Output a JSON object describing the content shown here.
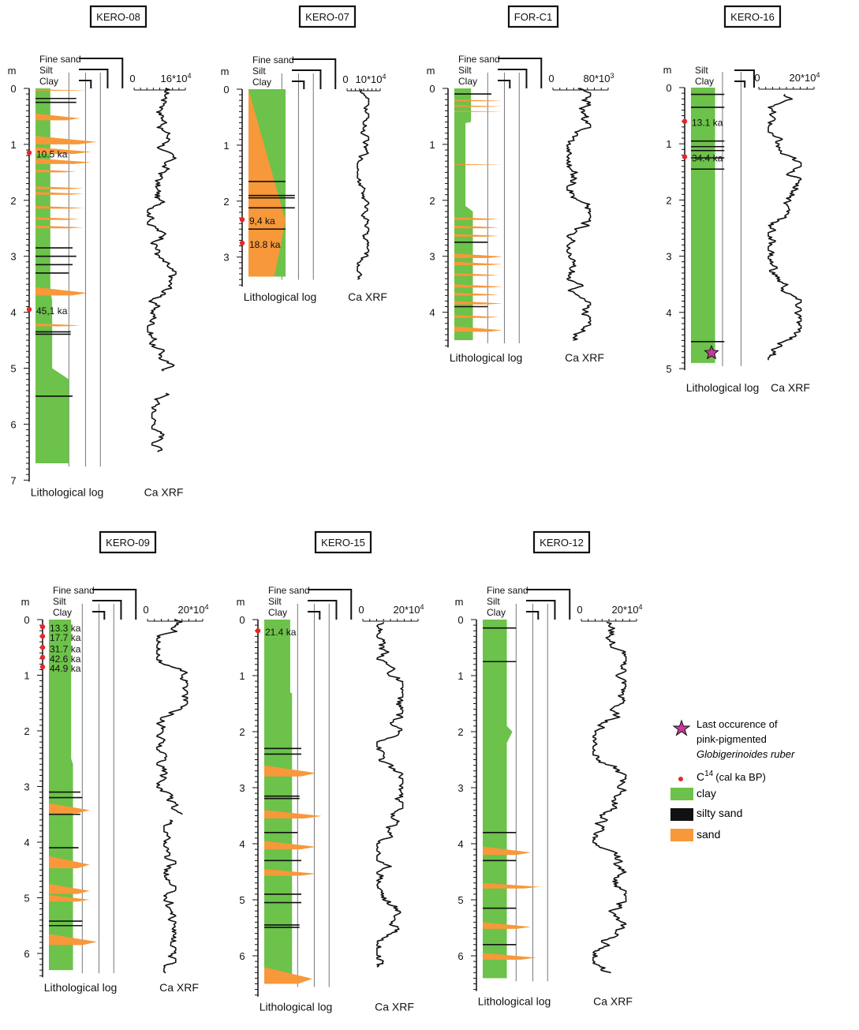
{
  "palette": {
    "clay": "#6cc24a",
    "sand": "#f7983a",
    "silty_sand": "#111111",
    "date_dot": "#e8262b",
    "star": "#c63b9a",
    "line": "#111111"
  },
  "labels": {
    "m": "m",
    "fine_sand": "Fine sand",
    "silt": "Silt",
    "clay": "Clay",
    "litho": "Lithological log",
    "ca": "Ca XRF"
  },
  "legend": {
    "star_line1": "Last occurence of",
    "star_line2": "pink-pigmented",
    "star_line3": "Globigerinoides ruber",
    "c14_main": "C",
    "c14_sup": "14",
    "c14_rest": "(cal ka BP)",
    "clay": "clay",
    "silty_sand": "silty sand",
    "sand": "sand"
  },
  "cores": [
    {
      "id": "KERO-08",
      "depth_max": 7,
      "core_length": 6.7,
      "ticks": [
        "0",
        "1",
        "2",
        "3",
        "4",
        "5",
        "6",
        "7"
      ],
      "xrf_scale": [
        "0",
        "16*10",
        "4"
      ],
      "clay_profile": [
        [
          0,
          0.4
        ],
        [
          3.6,
          0.4
        ],
        [
          3.8,
          0.45
        ],
        [
          5.0,
          0.45
        ],
        [
          5.2,
          0.9
        ],
        [
          6.7,
          0.9
        ]
      ],
      "sand": [
        [
          0.02,
          0.02,
          1.4
        ],
        [
          0.45,
          0.12,
          1.2
        ],
        [
          0.85,
          0.15,
          1.65
        ],
        [
          1.05,
          0.12,
          1.5
        ],
        [
          1.25,
          0.1,
          1.5
        ],
        [
          1.45,
          0.05,
          1.1
        ],
        [
          1.75,
          0.05,
          1.3
        ],
        [
          1.85,
          0.05,
          1.3
        ],
        [
          2.1,
          0.05,
          1.3
        ],
        [
          2.3,
          0.05,
          1.2
        ],
        [
          2.45,
          0.05,
          1.3
        ],
        [
          3.55,
          0.15,
          1.4
        ],
        [
          4.2,
          0.05,
          1.2
        ]
      ],
      "silty": [
        [
          0.18,
          0.03,
          1.1
        ],
        [
          0.25,
          0.02,
          1.1
        ],
        [
          2.85,
          0.02,
          1.0
        ],
        [
          3.0,
          0.02,
          1.1
        ],
        [
          3.15,
          0.02,
          1.0
        ],
        [
          3.3,
          0.02,
          0.9
        ],
        [
          4.35,
          0.1,
          0.95
        ],
        [
          5.5,
          0.02,
          1.0
        ]
      ],
      "dates": [
        {
          "d": 1.15,
          "label": "10.5 ka"
        },
        {
          "d": 3.95,
          "label": "45,1 ka"
        }
      ],
      "ca": [
        {
          "from": 0,
          "to": 5.05,
          "lo": 0.2,
          "hi": 0.85
        },
        {
          "from": 5.45,
          "to": 6.5,
          "lo": 0.3,
          "hi": 0.95
        }
      ],
      "star": null
    },
    {
      "id": "KERO-07",
      "depth_max": 3.5,
      "core_length": 3.35,
      "ticks": [
        "0",
        "1",
        "2",
        "3"
      ],
      "xrf_scale": [
        "0",
        "10*10",
        "4"
      ],
      "clay_profile": [
        [
          0,
          1.0
        ],
        [
          3.35,
          1.0
        ]
      ],
      "sand": [
        [
          0,
          3.35,
          1.0
        ]
      ],
      "silty": [
        [
          1.9,
          0.1,
          1.25
        ],
        [
          2.12,
          0.03,
          1.25
        ],
        [
          1.65,
          0.02,
          1.0
        ],
        [
          2.5,
          0.02,
          1.0
        ]
      ],
      "dates": [
        {
          "d": 2.33,
          "label": "9,4 ka"
        },
        {
          "d": 2.75,
          "label": "18.8 ka"
        }
      ],
      "ca": [
        {
          "from": 0,
          "to": 3.4,
          "lo": 0.2,
          "hi": 0.6
        }
      ],
      "star": null
    },
    {
      "id": "FOR-C1",
      "depth_max": 4.6,
      "core_length": 4.5,
      "ticks": [
        "0",
        "1",
        "2",
        "3",
        "4"
      ],
      "xrf_scale": [
        "0",
        "80*10",
        "3"
      ],
      "clay_profile": [
        [
          0,
          0.45
        ],
        [
          0.6,
          0.45
        ],
        [
          0.62,
          0.3
        ],
        [
          2.1,
          0.3
        ],
        [
          2.2,
          0.5
        ],
        [
          4.5,
          0.5
        ]
      ],
      "sand": [
        [
          0.2,
          0.03,
          1.3
        ],
        [
          0.3,
          0.03,
          1.3
        ],
        [
          0.4,
          0.02,
          1.3
        ],
        [
          1.35,
          0.02,
          1.3
        ],
        [
          2.3,
          0.05,
          1.2
        ],
        [
          2.45,
          0.05,
          1.2
        ],
        [
          2.6,
          0.05,
          1.2
        ],
        [
          2.95,
          0.08,
          1.3
        ],
        [
          3.1,
          0.06,
          1.3
        ],
        [
          3.3,
          0.05,
          1.2
        ],
        [
          3.5,
          0.06,
          1.3
        ],
        [
          3.65,
          0.05,
          1.2
        ],
        [
          3.8,
          0.06,
          1.3
        ],
        [
          4.05,
          0.05,
          1.2
        ],
        [
          4.25,
          0.1,
          1.3
        ]
      ],
      "silty": [
        [
          0.1,
          0.02,
          1.0
        ],
        [
          2.75,
          0.02,
          0.9
        ],
        [
          3.9,
          0.02,
          0.9
        ]
      ],
      "dates": [],
      "ca": [
        {
          "from": 0,
          "to": 4.5,
          "lo": 0.2,
          "hi": 0.7
        }
      ],
      "star": null
    },
    {
      "id": "KERO-16",
      "depth_max": 5,
      "core_length": 4.9,
      "ticks": [
        "0",
        "1",
        "2",
        "3",
        "4",
        "5"
      ],
      "xrf_scale": [
        "0",
        "20*10",
        "4"
      ],
      "clay_profile": [
        [
          0,
          0.65
        ],
        [
          4.9,
          0.65
        ]
      ],
      "sand": [],
      "silty": [
        [
          0.12,
          0.03,
          0.9
        ],
        [
          0.35,
          0.02,
          0.9
        ],
        [
          0.95,
          0.03,
          0.9
        ],
        [
          1.05,
          0.02,
          0.9
        ],
        [
          1.12,
          0.03,
          0.9
        ],
        [
          1.25,
          0.02,
          0.9
        ],
        [
          1.45,
          0.04,
          0.9
        ],
        [
          4.52,
          0.03,
          0.9
        ]
      ],
      "dates": [
        {
          "d": 0.6,
          "label": "13.1 ka"
        },
        {
          "d": 1.23,
          "label": "34.4 ka"
        }
      ],
      "ca": [
        {
          "from": 0.12,
          "to": 4.85,
          "lo": 0.1,
          "hi": 0.8
        }
      ],
      "star": 4.72
    },
    {
      "id": "KERO-09",
      "depth_max": 6.4,
      "core_length": 6.3,
      "ticks": [
        "0",
        "1",
        "2",
        "3",
        "4",
        "5",
        "6"
      ],
      "xrf_scale": [
        "0",
        "20*10",
        "4"
      ],
      "clay_profile": [
        [
          0,
          0.6
        ],
        [
          2.5,
          0.6
        ],
        [
          2.6,
          0.65
        ],
        [
          6.3,
          0.65
        ]
      ],
      "sand": [
        [
          3.3,
          0.18,
          1.1
        ],
        [
          4.25,
          0.22,
          1.1
        ],
        [
          4.75,
          0.18,
          1.1
        ],
        [
          4.95,
          0.12,
          1.1
        ],
        [
          5.65,
          0.2,
          1.3
        ]
      ],
      "silty": [
        [
          3.1,
          0.03,
          0.85
        ],
        [
          3.2,
          0.03,
          0.9
        ],
        [
          3.5,
          0.02,
          0.85
        ],
        [
          4.1,
          0.03,
          0.8
        ],
        [
          5.42,
          0.03,
          0.9
        ],
        [
          5.5,
          0.02,
          0.9
        ]
      ],
      "dates": [
        {
          "d": 0.13,
          "label": "13.3 ka"
        },
        {
          "d": 0.3,
          "label": "17.7 ka"
        },
        {
          "d": 0.5,
          "label": "31.7 ka"
        },
        {
          "d": 0.68,
          "label": "42.6 ka"
        },
        {
          "d": 0.85,
          "label": "44.9 ka"
        }
      ],
      "ca": [
        {
          "from": 0,
          "to": 3.5,
          "lo": 0.1,
          "hi": 0.75
        },
        {
          "from": 3.6,
          "to": 6.35,
          "lo": 0.25,
          "hi": 0.5
        }
      ],
      "star": null
    },
    {
      "id": "KERO-15",
      "depth_max": 6.7,
      "core_length": 6.5,
      "ticks": [
        "0",
        "1",
        "2",
        "3",
        "4",
        "5",
        "6"
      ],
      "xrf_scale": [
        "0",
        "20*10",
        "4"
      ],
      "clay_profile": [
        [
          0,
          0.7
        ],
        [
          1.3,
          0.7
        ],
        [
          1.32,
          0.75
        ],
        [
          6.5,
          0.75
        ]
      ],
      "sand": [
        [
          2.6,
          0.2,
          1.4
        ],
        [
          3.4,
          0.15,
          1.55
        ],
        [
          3.95,
          0.15,
          1.4
        ],
        [
          4.45,
          0.12,
          1.4
        ],
        [
          6.2,
          0.3,
          1.3
        ]
      ],
      "silty": [
        [
          2.3,
          0.04,
          1.0
        ],
        [
          2.4,
          0.03,
          1.0
        ],
        [
          3.15,
          0.08,
          0.95
        ],
        [
          3.8,
          0.03,
          0.9
        ],
        [
          4.3,
          0.03,
          1.0
        ],
        [
          4.9,
          0.06,
          1.0
        ],
        [
          5.05,
          0.05,
          1.0
        ],
        [
          5.45,
          0.1,
          0.95
        ]
      ],
      "dates": [
        {
          "d": 0.2,
          "label": "21.4 ka"
        }
      ],
      "ca": [
        {
          "from": 0.05,
          "to": 6.2,
          "lo": 0.2,
          "hi": 0.75
        }
      ],
      "star": null
    },
    {
      "id": "KERO-12",
      "depth_max": 6.6,
      "core_length": 6.4,
      "ticks": [
        "0",
        "1",
        "2",
        "3",
        "4",
        "5",
        "6"
      ],
      "xrf_scale": [
        "0",
        "20*10",
        "4"
      ],
      "clay_profile": [
        [
          0,
          0.65
        ],
        [
          1.9,
          0.65
        ],
        [
          2.0,
          0.8
        ],
        [
          2.2,
          0.65
        ],
        [
          6.4,
          0.65
        ]
      ],
      "sand": [
        [
          4.05,
          0.15,
          1.3
        ],
        [
          4.7,
          0.1,
          1.55
        ],
        [
          5.4,
          0.12,
          1.3
        ],
        [
          5.95,
          0.12,
          1.45
        ]
      ],
      "silty": [
        [
          0.15,
          0.02,
          0.9
        ],
        [
          0.75,
          0.02,
          0.9
        ],
        [
          3.8,
          0.03,
          0.9
        ],
        [
          4.3,
          0.03,
          0.9
        ],
        [
          5.15,
          0.02,
          0.9
        ],
        [
          5.8,
          0.02,
          0.9
        ]
      ],
      "dates": [],
      "ca": [
        {
          "from": 0.05,
          "to": 6.3,
          "lo": 0.15,
          "hi": 0.85
        }
      ],
      "star": null
    }
  ]
}
